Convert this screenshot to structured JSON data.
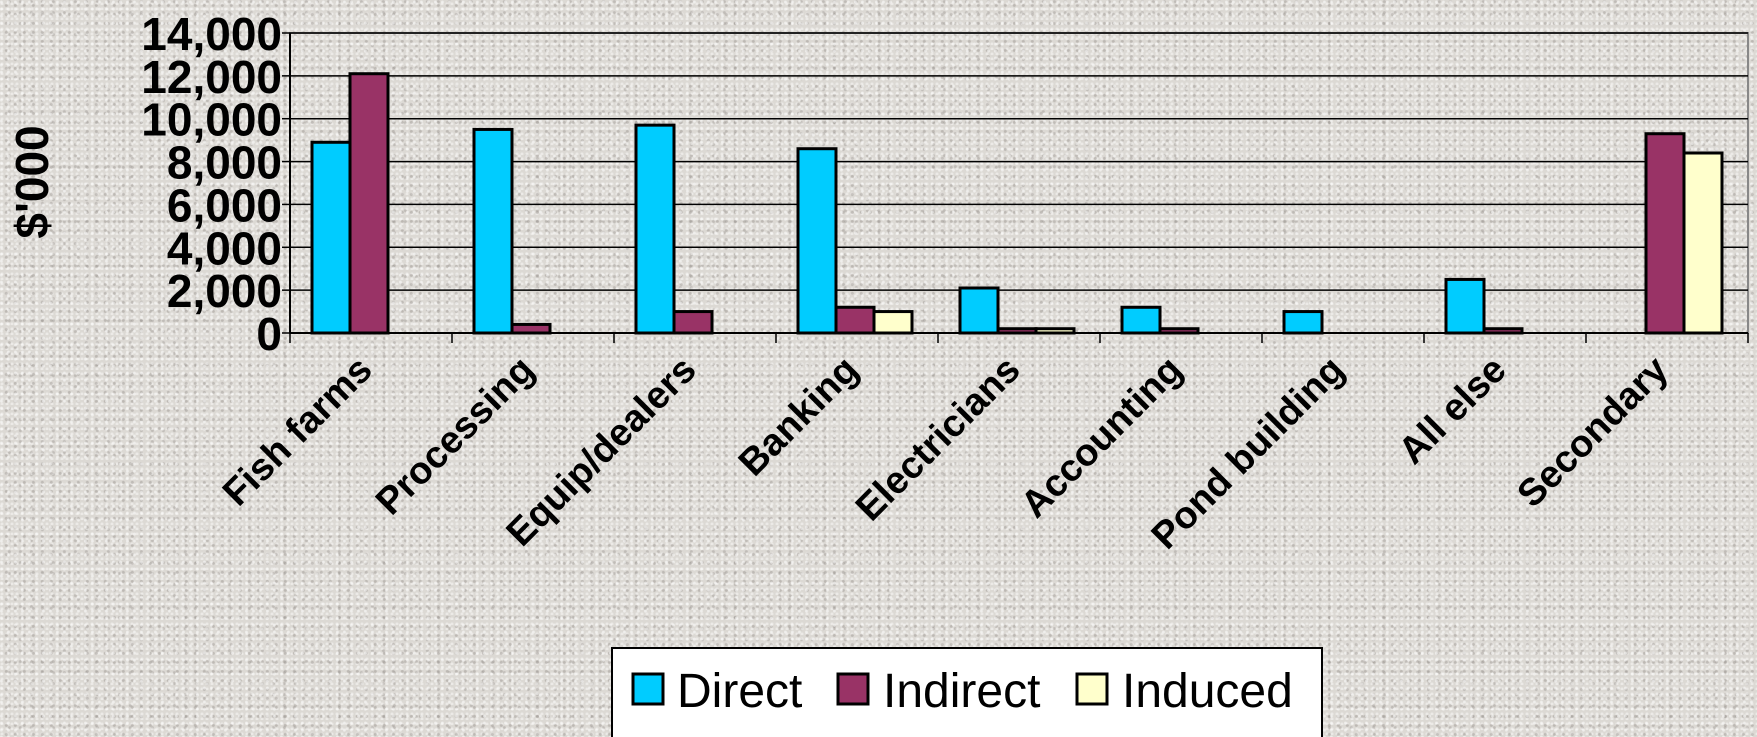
{
  "chart_data": {
    "type": "bar",
    "title": "",
    "xlabel": "",
    "ylabel": "$'000",
    "ylim": [
      0,
      14000
    ],
    "yticks": [
      0,
      2000,
      4000,
      6000,
      8000,
      10000,
      12000,
      14000
    ],
    "ytick_labels": [
      "0",
      "2,000",
      "4,000",
      "6,000",
      "8,000",
      "10,000",
      "12,000",
      "14,000"
    ],
    "grid": true,
    "legend_position": "bottom",
    "categories": [
      "Fish farms",
      "Processing",
      "Equip/dealers",
      "Banking",
      "Electricians",
      "Accounting",
      "Pond building",
      "All else",
      "Secondary"
    ],
    "series": [
      {
        "name": "Direct",
        "color": "#00ccff",
        "values": [
          8900,
          9500,
          9700,
          8600,
          2100,
          1200,
          1000,
          2500,
          0
        ]
      },
      {
        "name": "Indirect",
        "color": "#993366",
        "values": [
          12100,
          400,
          1000,
          1200,
          200,
          200,
          0,
          200,
          9300
        ]
      },
      {
        "name": "Induced",
        "color": "#ffffcc",
        "values": [
          0,
          0,
          0,
          1000,
          200,
          0,
          0,
          0,
          8400
        ]
      }
    ]
  }
}
